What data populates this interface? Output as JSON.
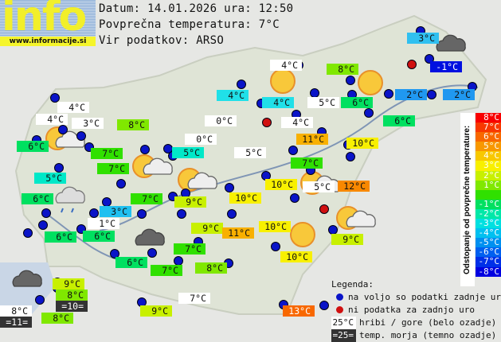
{
  "header": {
    "logo_text": "info",
    "url": "www.informacije.si",
    "date_line": "Datum: 14.01.2026 ura: 12:50",
    "avg_line": "Povprečna temperatura: 7°C",
    "source_line": "Vir podatkov: ARSO"
  },
  "scale": {
    "title": "Odstopanje od povprečne temperature:",
    "rows": [
      {
        "t": "8°C",
        "c": "#f80000"
      },
      {
        "t": "7°C",
        "c": "#f83800"
      },
      {
        "t": "6°C",
        "c": "#f86800"
      },
      {
        "t": "5°C",
        "c": "#f89800"
      },
      {
        "t": "4°C",
        "c": "#f8c800"
      },
      {
        "t": "3°C",
        "c": "#f8f000"
      },
      {
        "t": "2°C",
        "c": "#c8f000"
      },
      {
        "t": "1°C",
        "c": "#80e800"
      },
      {
        "t": "",
        "c": "#30e000"
      },
      {
        "t": "-1°C",
        "c": "#00e060"
      },
      {
        "t": "-2°C",
        "c": "#00e8a8"
      },
      {
        "t": "-3°C",
        "c": "#00e0e0"
      },
      {
        "t": "-4°C",
        "c": "#00c0f0"
      },
      {
        "t": "-5°C",
        "c": "#0090f0"
      },
      {
        "t": "-6°C",
        "c": "#0060f0"
      },
      {
        "t": "-7°C",
        "c": "#0030e8"
      },
      {
        "t": "-8°C",
        "c": "#0000e0"
      }
    ]
  },
  "legend": {
    "title": "Legenda:",
    "blue": "na voljo so podatki zadnje ure",
    "red": "ni podatka za zadnjo uro",
    "mountain_sample": "25°C",
    "mountain": "hribi / gore (belo ozadje)",
    "sea_sample": "=25=",
    "sea": "temp. morja (temno ozadje)",
    "blue_color": "#0a14c8",
    "red_color": "#d01010"
  },
  "stations": [
    {
      "t": "4°C",
      "c": "#ffffff"
    },
    {
      "t": "4°C",
      "c": "#ffffff"
    },
    {
      "t": "3°C",
      "c": "#ffffff"
    },
    {
      "t": "8°C",
      "c": "#80e800"
    },
    {
      "t": "6°C",
      "c": "#00e060"
    },
    {
      "t": "7°C",
      "c": "#30e000"
    },
    {
      "t": "7°C",
      "c": "#30e000"
    },
    {
      "t": "5°C",
      "c": "#00e8c8"
    },
    {
      "t": "6°C",
      "c": "#00e060"
    },
    {
      "t": "7°C",
      "c": "#30e000"
    },
    {
      "t": "3°C",
      "c": "#20c0f0"
    },
    {
      "t": "1°C",
      "c": "#ffffff"
    },
    {
      "t": "6°C",
      "c": "#00e060"
    },
    {
      "t": "6°C",
      "c": "#00e060"
    },
    {
      "t": "4°C",
      "c": "#ffffff"
    },
    {
      "t": "8°C",
      "c": "#80e800"
    },
    {
      "t": "4°C",
      "c": "#20e0e8"
    },
    {
      "t": "4°C",
      "c": "#20e0e8"
    },
    {
      "t": "5°C",
      "c": "#ffffff"
    },
    {
      "t": "6°C",
      "c": "#00e060"
    },
    {
      "t": "0°C",
      "c": "#ffffff"
    },
    {
      "t": "4°C",
      "c": "#ffffff"
    },
    {
      "t": "2°C",
      "c": "#2098f0"
    },
    {
      "t": "2°C",
      "c": "#2098f0"
    },
    {
      "t": "3°C",
      "c": "#30c0f0"
    },
    {
      "t": "-1°C",
      "c": "#0010e0",
      "w": 1
    },
    {
      "t": "6°C",
      "c": "#00e060"
    },
    {
      "t": "0°C",
      "c": "#ffffff"
    },
    {
      "t": "11°C",
      "c": "#f8b000"
    },
    {
      "t": "10°C",
      "c": "#f8f000"
    },
    {
      "t": "5°C",
      "c": "#00e8c8"
    },
    {
      "t": "5°C",
      "c": "#ffffff"
    },
    {
      "t": "7°C",
      "c": "#30e000"
    },
    {
      "t": "10°C",
      "c": "#f8f000"
    },
    {
      "t": "5°C",
      "c": "#ffffff"
    },
    {
      "t": "12°C",
      "c": "#f88800"
    },
    {
      "t": "9°C",
      "c": "#c8f000"
    },
    {
      "t": "10°C",
      "c": "#f8f000"
    },
    {
      "t": "10°C",
      "c": "#f8f000"
    },
    {
      "t": "9°C",
      "c": "#c8f000"
    },
    {
      "t": "11°C",
      "c": "#f8b000"
    },
    {
      "t": "9°C",
      "c": "#c8f000"
    },
    {
      "t": "10°C",
      "c": "#f8f000"
    },
    {
      "t": "7°C",
      "c": "#30e000"
    },
    {
      "t": "8°C",
      "c": "#80e800"
    },
    {
      "t": "6°C",
      "c": "#00e060"
    },
    {
      "t": "7°C",
      "c": "#30e000"
    },
    {
      "t": "9°C",
      "c": "#c8f000"
    },
    {
      "t": "8°C",
      "c": "#80e800"
    },
    {
      "t": "=10=",
      "c": "#333333",
      "w": 1
    },
    {
      "t": "8°C",
      "c": "#ffffff"
    },
    {
      "t": "=11=",
      "c": "#333333",
      "w": 1
    },
    {
      "t": "8°C",
      "c": "#80e800"
    },
    {
      "t": "9°C",
      "c": "#c8f000"
    },
    {
      "t": "7°C",
      "c": "#ffffff"
    },
    {
      "t": "13°C",
      "c": "#f86800",
      "w": 1
    }
  ]
}
